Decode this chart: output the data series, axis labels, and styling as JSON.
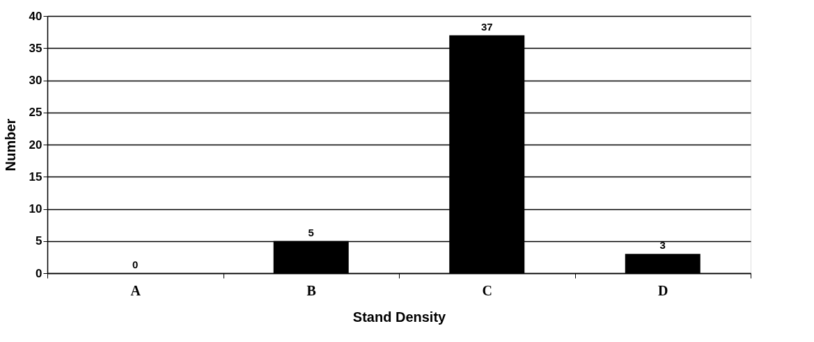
{
  "chart_data": {
    "type": "bar",
    "xlabel": "Stand Density",
    "ylabel": "Number",
    "categories": [
      "A",
      "B",
      "C",
      "D"
    ],
    "values": [
      0,
      5,
      37,
      3
    ],
    "color": "#000000",
    "ylim": [
      0,
      40
    ],
    "yticks": [
      0,
      5,
      10,
      15,
      20,
      25,
      30,
      35,
      40
    ],
    "grid": "y",
    "data_labels": true
  }
}
